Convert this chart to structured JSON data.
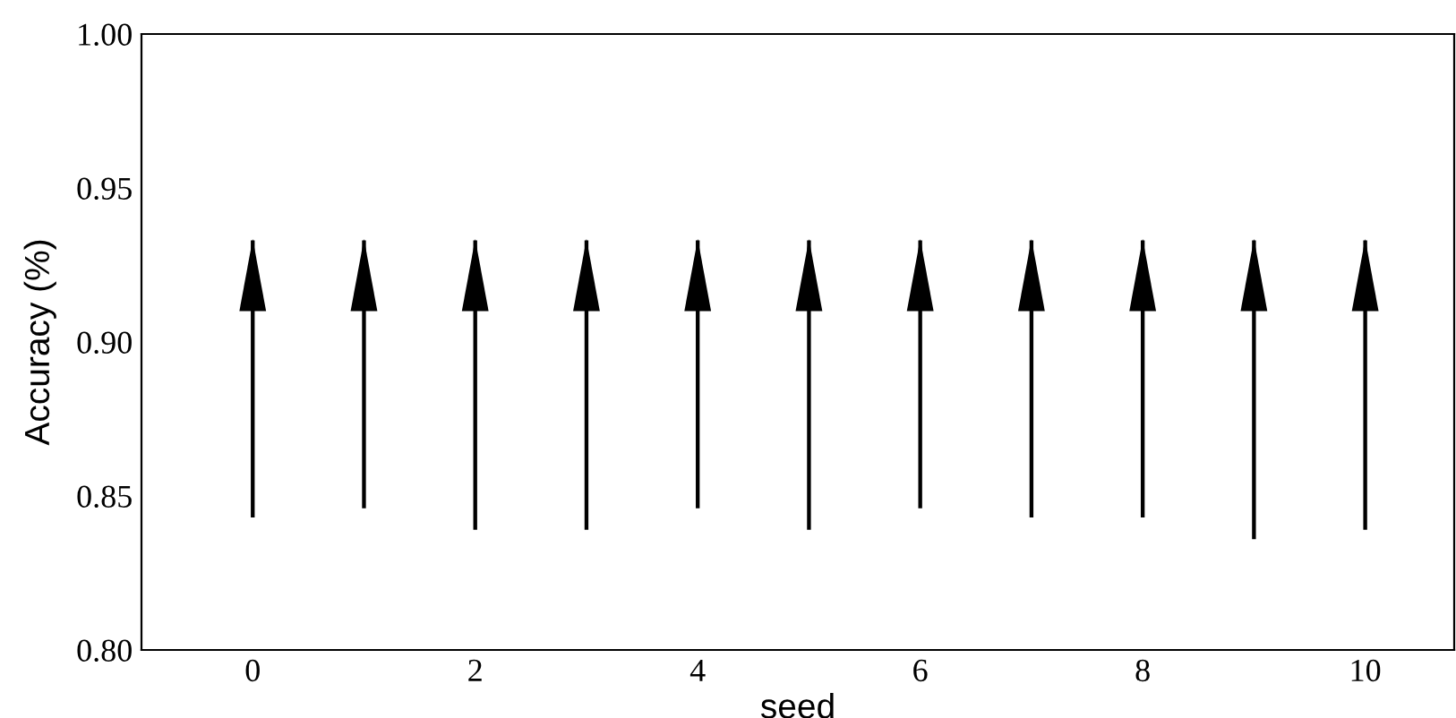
{
  "chart_data": {
    "type": "bar",
    "xlabel": "seed",
    "ylabel": "Accuracy (%)",
    "x": [
      0,
      1,
      2,
      3,
      4,
      5,
      6,
      7,
      8,
      9,
      10
    ],
    "base": [
      0.843,
      0.846,
      0.839,
      0.839,
      0.846,
      0.839,
      0.846,
      0.843,
      0.843,
      0.836,
      0.839
    ],
    "values": [
      0.09,
      0.087,
      0.094,
      0.094,
      0.087,
      0.094,
      0.087,
      0.09,
      0.09,
      0.097,
      0.094
    ],
    "color": "#000000",
    "xlim": [
      -1,
      10.8
    ],
    "xticks": [
      0,
      2,
      4,
      6,
      8,
      10
    ],
    "ylim": [
      0.8,
      1.0
    ],
    "yticks": [
      {
        "value": 0.8,
        "label": "0.80"
      },
      {
        "value": 0.85,
        "label": "0.85"
      },
      {
        "value": 0.9,
        "label": "0.90"
      },
      {
        "value": 0.95,
        "label": "0.95"
      },
      {
        "value": 1.0,
        "label": "1.00"
      }
    ],
    "grid": false
  }
}
